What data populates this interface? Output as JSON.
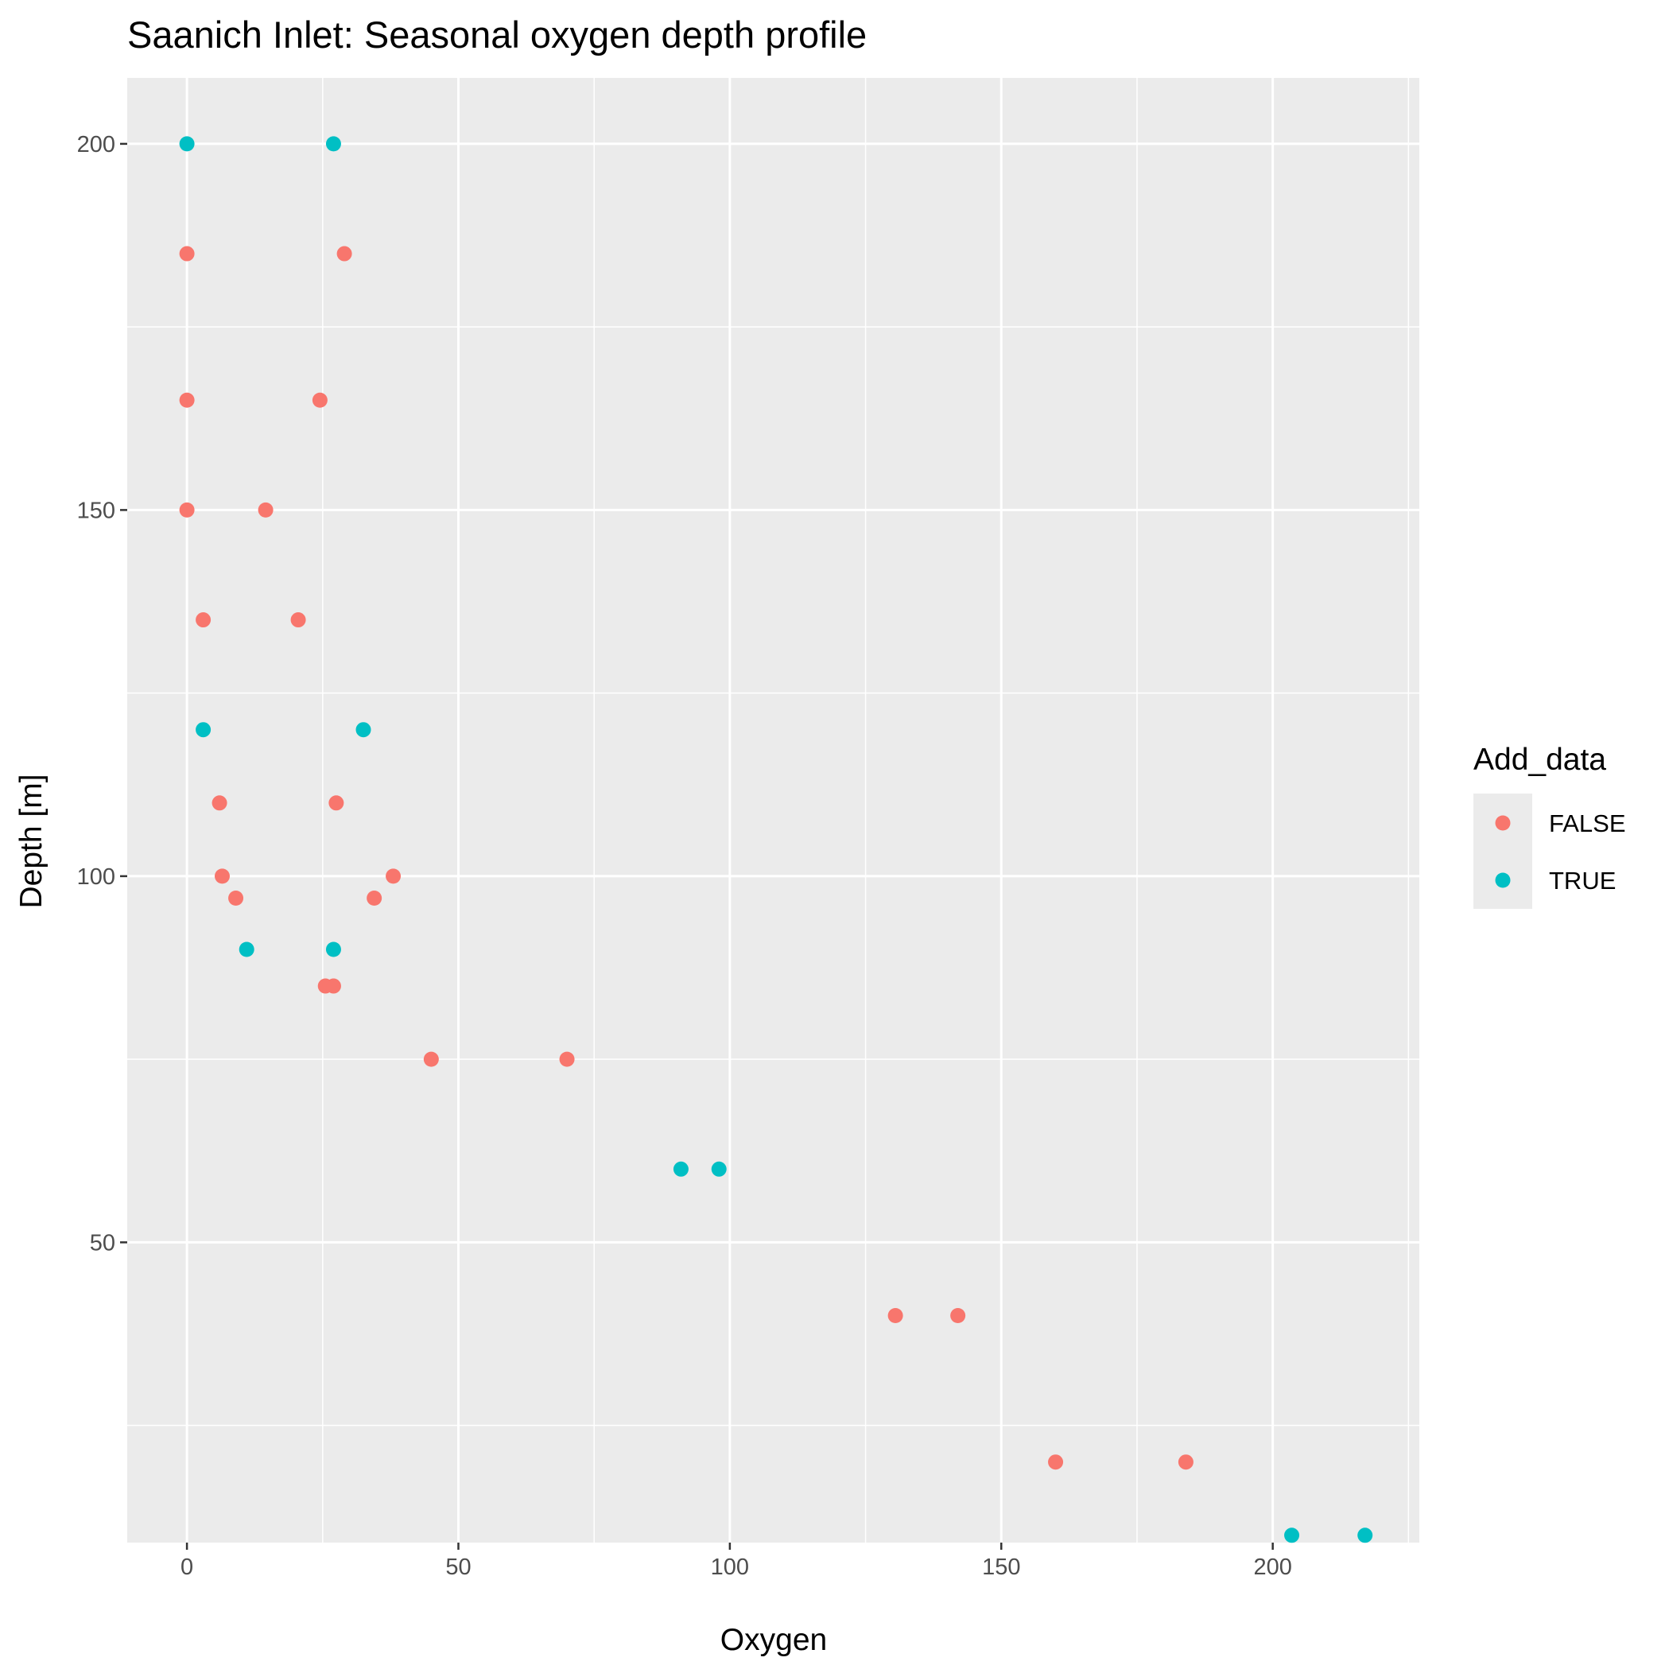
{
  "chart_data": {
    "type": "scatter",
    "title": "Saanich Inlet: Seasonal oxygen depth profile",
    "xlabel": "Oxygen",
    "ylabel": "Depth [m]",
    "xlim": [
      -11,
      227
    ],
    "ylim": [
      9,
      209
    ],
    "x_ticks": [
      0,
      50,
      100,
      150,
      200
    ],
    "y_ticks": [
      50,
      100,
      150,
      200
    ],
    "grid": true,
    "legend": {
      "title": "Add_data",
      "placement": "right"
    },
    "series": [
      {
        "name": "FALSE",
        "color": "#F8766D",
        "points": [
          {
            "x": 0,
            "y": 185
          },
          {
            "x": 29,
            "y": 185
          },
          {
            "x": 0,
            "y": 165
          },
          {
            "x": 24.5,
            "y": 165
          },
          {
            "x": 0,
            "y": 150
          },
          {
            "x": 14.5,
            "y": 150
          },
          {
            "x": 3,
            "y": 135
          },
          {
            "x": 20.5,
            "y": 135
          },
          {
            "x": 6,
            "y": 110
          },
          {
            "x": 27.5,
            "y": 110
          },
          {
            "x": 6.5,
            "y": 100
          },
          {
            "x": 38,
            "y": 100
          },
          {
            "x": 9,
            "y": 97
          },
          {
            "x": 34.5,
            "y": 97
          },
          {
            "x": 25.5,
            "y": 85
          },
          {
            "x": 27,
            "y": 85
          },
          {
            "x": 45,
            "y": 75
          },
          {
            "x": 70,
            "y": 75
          },
          {
            "x": 130.5,
            "y": 40
          },
          {
            "x": 142,
            "y": 40
          },
          {
            "x": 160,
            "y": 20
          },
          {
            "x": 184,
            "y": 20
          }
        ]
      },
      {
        "name": "TRUE",
        "color": "#00BFC4",
        "points": [
          {
            "x": 0,
            "y": 200
          },
          {
            "x": 27,
            "y": 200
          },
          {
            "x": 3,
            "y": 120
          },
          {
            "x": 32.5,
            "y": 120
          },
          {
            "x": 11,
            "y": 90
          },
          {
            "x": 27,
            "y": 90
          },
          {
            "x": 91,
            "y": 60
          },
          {
            "x": 98,
            "y": 60
          },
          {
            "x": 203.5,
            "y": 10
          },
          {
            "x": 217,
            "y": 10
          }
        ]
      }
    ]
  }
}
